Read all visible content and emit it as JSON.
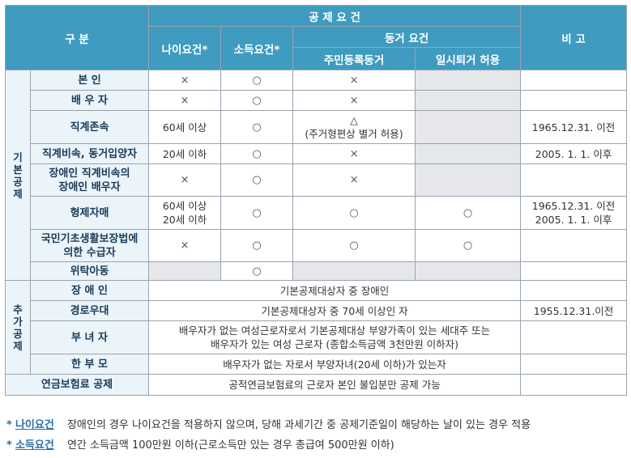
{
  "header": {
    "category": "구 분",
    "requirements": "공 제 요 건",
    "age": "나이요건*",
    "income": "소득요건*",
    "cohabit": "동거 요건",
    "resident": "주민등록동거",
    "temporary": "일시퇴거 허용",
    "remarks": "비 고"
  },
  "basic": {
    "label": "기본공제",
    "rows": [
      {
        "name": "본 인",
        "age": "×",
        "income": "○",
        "resident": "×",
        "temp": "",
        "remarks": ""
      },
      {
        "name": "배 우 자",
        "age": "×",
        "income": "○",
        "resident": "×",
        "temp": "",
        "remarks": ""
      },
      {
        "name": "직계존속",
        "age": "60세 이상",
        "income": "○",
        "resident": "△",
        "resident_note": "(주거형편상 별거 허용)",
        "temp": "",
        "remarks": "1965.12.31. 이전"
      },
      {
        "name": "직계비속, 동거입양자",
        "age": "20세 이하",
        "income": "○",
        "resident": "×",
        "temp": "",
        "remarks": "2005. 1. 1. 이후"
      },
      {
        "name": "장애인 직계비속의",
        "name2": "장애인 배우자",
        "age": "×",
        "income": "○",
        "resident": "×",
        "temp": "",
        "remarks": ""
      },
      {
        "name": "형제자매",
        "age": "60세 이상",
        "age2": "20세 이하",
        "income": "○",
        "resident": "○",
        "temp": "○",
        "remarks": "1965.12.31. 이전",
        "remarks2": "2005. 1. 1. 이후"
      },
      {
        "name": "국민기초생활보장법에",
        "name2": "의한 수급자",
        "age": "×",
        "income": "○",
        "resident": "○",
        "temp": "○",
        "remarks": ""
      },
      {
        "name": "위탁아동",
        "age": "",
        "income": "○",
        "resident": "",
        "temp": "",
        "remarks": ""
      }
    ]
  },
  "additional": {
    "label": "추가공제",
    "rows": [
      {
        "name": "장 애 인",
        "text": "기본공제대상자 중 장애인",
        "remarks": ""
      },
      {
        "name": "경로우대",
        "text": "기본공제대상자 중 70세 이상인 자",
        "remarks": "1955.12.31.이전"
      },
      {
        "name": "부 녀 자",
        "text": "배우자가 없는 여성근로자로서 기본공제대상 부양가족이 있는 세대주 또는",
        "text2": "배우자가 있는 여성 근로자 (종합소득금액 3천만원 이하자)",
        "remarks": ""
      },
      {
        "name": "한 부 모",
        "text": "배우자가 없는 자로서 부양자녀(20세 이하)가 있는자",
        "remarks": ""
      }
    ]
  },
  "pension": {
    "name": "연금보험료 공제",
    "text": "공적연금보험료의 근로자 본인 불입분만 공제 가능"
  },
  "footnotes": [
    {
      "star": "*",
      "term": "나이요건",
      "text": "장애인의 경우 나이요건을 적용하지 않으며, 당해 과세기간 중 공제기준일이 해당하는 날이 있는 경우 적용"
    },
    {
      "star": "*",
      "term": "소득요건",
      "text": "연간 소득금액 100만원 이하(근로소득만 있는 경우 총급여 500만원 이하)"
    }
  ],
  "colors": {
    "header": "#3f9bbf",
    "side": "#eaf4f9",
    "shade": "#e5e7ea",
    "accent": "#2b6fa6"
  }
}
